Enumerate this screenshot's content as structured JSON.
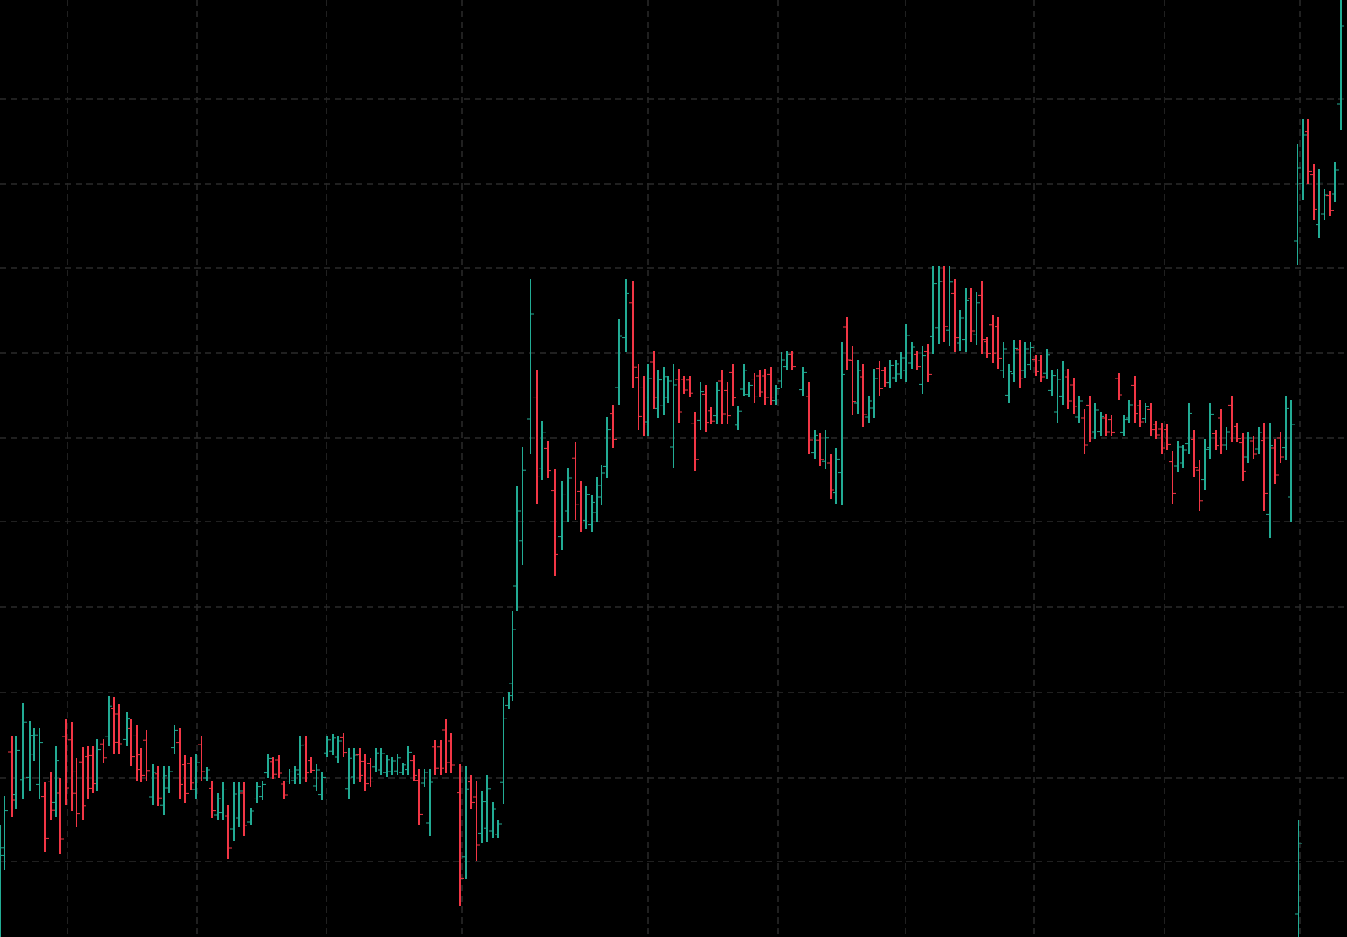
{
  "chart_data": {
    "type": "bar",
    "subtype": "ohlc-range-bars",
    "title": "",
    "xlabel": "",
    "ylabel": "",
    "grid": true,
    "background": "#000000",
    "grid_color": "#2a2a2a",
    "colors": {
      "up": "#22ab94",
      "down": "#f23645"
    },
    "ylim": [
      0,
      1042
    ],
    "y_axis_inverted": true,
    "bars": [
      [
        0,
        918,
        1042,
        "up"
      ],
      [
        5,
        885,
        968,
        "up"
      ],
      [
        13,
        818,
        908,
        "down"
      ],
      [
        18,
        818,
        900,
        "up"
      ],
      [
        26,
        782,
        888,
        "up"
      ],
      [
        33,
        802,
        880,
        "up"
      ],
      [
        38,
        810,
        846,
        "up"
      ],
      [
        44,
        810,
        888,
        "up"
      ],
      [
        50,
        870,
        948,
        "down"
      ],
      [
        57,
        858,
        912,
        "down"
      ],
      [
        62,
        830,
        908,
        "up"
      ],
      [
        67,
        865,
        950,
        "down"
      ],
      [
        73,
        800,
        895,
        "down"
      ],
      [
        80,
        803,
        902,
        "down"
      ],
      [
        85,
        843,
        920,
        "down"
      ],
      [
        92,
        831,
        912,
        "down"
      ],
      [
        98,
        830,
        888,
        "down"
      ],
      [
        103,
        830,
        882,
        "down"
      ],
      [
        108,
        822,
        880,
        "up"
      ],
      [
        115,
        822,
        848,
        "down"
      ],
      [
        121,
        774,
        830,
        "up"
      ],
      [
        127,
        775,
        838,
        "down"
      ],
      [
        132,
        783,
        838,
        "down"
      ],
      [
        141,
        792,
        830,
        "up"
      ],
      [
        146,
        800,
        852,
        "down"
      ],
      [
        152,
        806,
        868,
        "down"
      ],
      [
        157,
        832,
        870,
        "down"
      ],
      [
        163,
        812,
        868,
        "down"
      ],
      [
        170,
        850,
        895,
        "up"
      ],
      [
        176,
        852,
        896,
        "down"
      ],
      [
        182,
        852,
        906,
        "up"
      ],
      [
        188,
        852,
        882,
        "up"
      ],
      [
        194,
        806,
        838,
        "up"
      ],
      [
        200,
        810,
        888,
        "down"
      ],
      [
        206,
        840,
        893,
        "down"
      ],
      [
        212,
        842,
        878,
        "down"
      ],
      [
        218,
        838,
        888,
        "up"
      ],
      [
        224,
        818,
        868,
        "down"
      ],
      [
        230,
        853,
        868,
        "up"
      ],
      [
        236,
        868,
        910,
        "down"
      ],
      [
        242,
        882,
        912,
        "up"
      ],
      [
        248,
        870,
        912,
        "up"
      ],
      [
        254,
        895,
        955,
        "down"
      ],
      [
        260,
        870,
        935,
        "up"
      ],
      [
        266,
        870,
        920,
        "up"
      ],
      [
        271,
        870,
        930,
        "down"
      ],
      [
        279,
        898,
        918,
        "up"
      ],
      [
        286,
        870,
        893,
        "up"
      ],
      [
        292,
        868,
        890,
        "up"
      ],
      [
        298,
        838,
        865,
        "up"
      ],
      [
        304,
        842,
        866,
        "down"
      ],
      [
        310,
        840,
        865,
        "down"
      ],
      [
        316,
        868,
        888,
        "down"
      ],
      [
        322,
        855,
        872,
        "up"
      ],
      [
        328,
        852,
        872,
        "up"
      ],
      [
        334,
        818,
        872,
        "up"
      ],
      [
        340,
        818,
        870,
        "down"
      ],
      [
        346,
        842,
        860,
        "down"
      ],
      [
        352,
        850,
        880,
        "up"
      ],
      [
        358,
        858,
        890,
        "up"
      ],
      [
        364,
        818,
        842,
        "up"
      ],
      [
        370,
        816,
        840,
        "up"
      ],
      [
        376,
        818,
        848,
        "up"
      ],
      [
        382,
        815,
        842,
        "down"
      ],
      [
        388,
        832,
        888,
        "up"
      ],
      [
        394,
        832,
        872,
        "up"
      ],
      [
        400,
        832,
        870,
        "down"
      ],
      [
        406,
        838,
        880,
        "down"
      ],
      [
        412,
        843,
        875,
        "down"
      ],
      [
        418,
        832,
        858,
        "up"
      ],
      [
        424,
        832,
        862,
        "up"
      ],
      [
        430,
        840,
        864,
        "up"
      ],
      [
        436,
        842,
        862,
        "up"
      ],
      [
        442,
        838,
        862,
        "up"
      ],
      [
        448,
        848,
        862,
        "up"
      ],
      [
        454,
        830,
        862,
        "up"
      ],
      [
        460,
        840,
        868,
        "down"
      ],
      [
        466,
        855,
        918,
        "down"
      ],
      [
        472,
        855,
        875,
        "up"
      ],
      [
        478,
        855,
        930,
        "up"
      ],
      [
        484,
        823,
        862,
        "down"
      ],
      [
        490,
        823,
        862,
        "down"
      ],
      [
        496,
        800,
        860,
        "down"
      ],
      [
        502,
        815,
        860,
        "down"
      ],
      [
        512,
        850,
        1008,
        "down"
      ],
      [
        518,
        852,
        978,
        "up"
      ],
      [
        524,
        862,
        900,
        "down"
      ],
      [
        530,
        868,
        958,
        "down"
      ],
      [
        536,
        880,
        938,
        "up"
      ],
      [
        542,
        862,
        936,
        "up"
      ],
      [
        548,
        892,
        932,
        "up"
      ],
      [
        554,
        912,
        932,
        "up"
      ],
      [
        560,
        775,
        894,
        "up"
      ],
      [
        566,
        770,
        788,
        "up"
      ],
      [
        570,
        680,
        780,
        "up"
      ],
      [
        575,
        540,
        680,
        "up"
      ],
      [
        581,
        497,
        628,
        "up"
      ],
      [
        590,
        310,
        505,
        "up"
      ],
      [
        597,
        412,
        560,
        "down"
      ],
      [
        603,
        468,
        534,
        "up"
      ],
      [
        609,
        490,
        532,
        "down"
      ],
      [
        617,
        522,
        640,
        "down"
      ],
      [
        625,
        535,
        612,
        "up"
      ],
      [
        632,
        520,
        580,
        "up"
      ],
      [
        640,
        492,
        578,
        "down"
      ],
      [
        646,
        535,
        592,
        "down"
      ],
      [
        652,
        540,
        588,
        "up"
      ],
      [
        658,
        550,
        592,
        "up"
      ],
      [
        664,
        530,
        580,
        "up"
      ],
      [
        669,
        517,
        562,
        "up"
      ],
      [
        675,
        464,
        532,
        "up"
      ],
      [
        682,
        450,
        498,
        "down"
      ],
      [
        688,
        355,
        450,
        "up"
      ],
      [
        696,
        310,
        392,
        "up"
      ],
      [
        704,
        313,
        432,
        "down"
      ],
      [
        710,
        405,
        478,
        "down"
      ],
      [
        716,
        418,
        485,
        "down"
      ],
      [
        721,
        405,
        485,
        "up"
      ],
      [
        727,
        390,
        455,
        "down"
      ],
      [
        732,
        412,
        465,
        "up"
      ],
      [
        738,
        408,
        462,
        "up"
      ],
      [
        743,
        418,
        448,
        "up"
      ],
      [
        749,
        405,
        520,
        "up"
      ],
      [
        755,
        410,
        470,
        "down"
      ],
      [
        761,
        418,
        438,
        "down"
      ],
      [
        767,
        418,
        442,
        "down"
      ],
      [
        773,
        458,
        524,
        "down"
      ],
      [
        779,
        425,
        478,
        "up"
      ],
      [
        785,
        428,
        480,
        "down"
      ],
      [
        791,
        453,
        472,
        "down"
      ],
      [
        797,
        425,
        472,
        "up"
      ],
      [
        803,
        412,
        472,
        "down"
      ],
      [
        809,
        425,
        472,
        "down"
      ],
      [
        815,
        405,
        452,
        "down"
      ],
      [
        821,
        452,
        478,
        "up"
      ],
      [
        827,
        405,
        440,
        "up"
      ],
      [
        833,
        425,
        442,
        "up"
      ],
      [
        839,
        415,
        448,
        "down"
      ],
      [
        845,
        412,
        442,
        "down"
      ],
      [
        851,
        410,
        450,
        "down"
      ],
      [
        857,
        408,
        450,
        "down"
      ],
      [
        863,
        428,
        450,
        "up"
      ],
      [
        869,
        392,
        432,
        "up"
      ],
      [
        875,
        390,
        412,
        "up"
      ],
      [
        881,
        390,
        412,
        "down"
      ],
      [
        893,
        408,
        440,
        "up"
      ],
      [
        900,
        425,
        505,
        "down"
      ],
      [
        906,
        478,
        510,
        "up"
      ],
      [
        912,
        482,
        518,
        "down"
      ],
      [
        918,
        478,
        522,
        "up"
      ],
      [
        924,
        505,
        555,
        "down"
      ],
      [
        930,
        498,
        560,
        "up"
      ],
      [
        936,
        380,
        562,
        "up"
      ],
      [
        942,
        352,
        412,
        "down"
      ],
      [
        948,
        385,
        462,
        "down"
      ],
      [
        954,
        400,
        460,
        "up"
      ],
      [
        960,
        405,
        475,
        "down"
      ],
      [
        966,
        440,
        470,
        "up"
      ],
      [
        972,
        410,
        465,
        "up"
      ],
      [
        978,
        402,
        440,
        "down"
      ],
      [
        984,
        408,
        430,
        "down"
      ],
      [
        990,
        400,
        432,
        "up"
      ],
      [
        996,
        400,
        425,
        "up"
      ],
      [
        1002,
        392,
        422,
        "up"
      ],
      [
        1008,
        360,
        425,
        "up"
      ],
      [
        1014,
        380,
        410,
        "up"
      ],
      [
        1020,
        390,
        412,
        "down"
      ],
      [
        1026,
        385,
        438,
        "up"
      ],
      [
        1032,
        382,
        425,
        "down"
      ],
      [
        1038,
        296,
        394,
        "up"
      ],
      [
        1044,
        296,
        382,
        "up"
      ],
      [
        1050,
        296,
        380,
        "down"
      ],
      [
        1056,
        296,
        385,
        "up"
      ],
      [
        1062,
        310,
        392,
        "down"
      ],
      [
        1068,
        345,
        390,
        "up"
      ],
      [
        1074,
        320,
        392,
        "up"
      ],
      [
        1080,
        320,
        380,
        "down"
      ],
      [
        1086,
        325,
        384,
        "up"
      ],
      [
        1092,
        312,
        394,
        "down"
      ],
      [
        1098,
        375,
        398,
        "down"
      ],
      [
        1104,
        350,
        404,
        "down"
      ],
      [
        1110,
        352,
        410,
        "down"
      ],
      [
        1116,
        380,
        420,
        "up"
      ],
      [
        1122,
        405,
        448,
        "up"
      ],
      [
        1128,
        378,
        425,
        "up"
      ],
      [
        1134,
        378,
        432,
        "down"
      ],
      [
        1140,
        380,
        420,
        "up"
      ],
      [
        1146,
        380,
        412,
        "up"
      ],
      [
        1152,
        395,
        418,
        "down"
      ],
      [
        1158,
        395,
        425,
        "down"
      ],
      [
        1164,
        388,
        422,
        "up"
      ],
      [
        1170,
        412,
        440,
        "up"
      ],
      [
        1176,
        410,
        470,
        "up"
      ],
      [
        1182,
        402,
        450,
        "up"
      ],
      [
        1188,
        410,
        455,
        "down"
      ],
      [
        1194,
        420,
        460,
        "down"
      ],
      [
        1200,
        440,
        470,
        "up"
      ],
      [
        1206,
        455,
        505,
        "down"
      ],
      [
        1212,
        440,
        492,
        "down"
      ],
      [
        1218,
        448,
        488,
        "up"
      ],
      [
        1224,
        458,
        485,
        "up"
      ],
      [
        1230,
        460,
        485,
        "down"
      ],
      [
        1236,
        462,
        485,
        "down"
      ],
      [
        1244,
        415,
        445,
        "down"
      ],
      [
        1250,
        462,
        485,
        "up"
      ],
      [
        1256,
        445,
        470,
        "up"
      ],
      [
        1262,
        418,
        470,
        "down"
      ],
      [
        1268,
        445,
        475,
        "down"
      ],
      [
        1274,
        448,
        470,
        "up"
      ],
      [
        1280,
        448,
        485,
        "down"
      ],
      [
        1286,
        468,
        488,
        "down"
      ],
      [
        1292,
        470,
        505,
        "down"
      ],
      [
        1298,
        472,
        500,
        "down"
      ],
      [
        1304,
        502,
        560,
        "down"
      ],
      [
        1310,
        490,
        525,
        "up"
      ],
      [
        1316,
        495,
        520,
        "up"
      ],
      [
        1322,
        448,
        505,
        "up"
      ],
      [
        1328,
        478,
        530,
        "down"
      ],
      [
        1334,
        512,
        568,
        "down"
      ],
      [
        1340,
        488,
        545,
        "up"
      ],
      [
        1346,
        448,
        510,
        "up"
      ],
      [
        1352,
        478,
        500,
        "down"
      ],
      [
        1358,
        455,
        505,
        "down"
      ],
      [
        1364,
        475,
        500,
        "up"
      ],
      [
        1370,
        440,
        492,
        "down"
      ],
      [
        1376,
        470,
        492,
        "down"
      ],
      [
        1382,
        482,
        535,
        "down"
      ],
      [
        1388,
        480,
        515,
        "up"
      ],
      [
        1394,
        485,
        510,
        "down"
      ],
      [
        1400,
        475,
        505,
        "up"
      ],
      [
        1406,
        470,
        568,
        "down"
      ],
      [
        1412,
        470,
        598,
        "up"
      ],
      [
        1418,
        488,
        538,
        "down"
      ],
      [
        1424,
        480,
        515,
        "down"
      ],
      [
        1430,
        440,
        512,
        "up"
      ],
      [
        1436,
        445,
        580,
        "up"
      ],
      [
        1443,
        160,
        295,
        "up"
      ],
      [
        1449,
        132,
        222,
        "up"
      ],
      [
        1455,
        132,
        205,
        "down"
      ],
      [
        1461,
        182,
        245,
        "down"
      ],
      [
        1467,
        188,
        265,
        "up"
      ],
      [
        1473,
        210,
        245,
        "up"
      ],
      [
        1479,
        212,
        240,
        "down"
      ],
      [
        1485,
        180,
        225,
        "up"
      ],
      [
        1491,
        0,
        145,
        "up"
      ],
      [
        1444,
        912,
        1042,
        "up"
      ]
    ]
  }
}
